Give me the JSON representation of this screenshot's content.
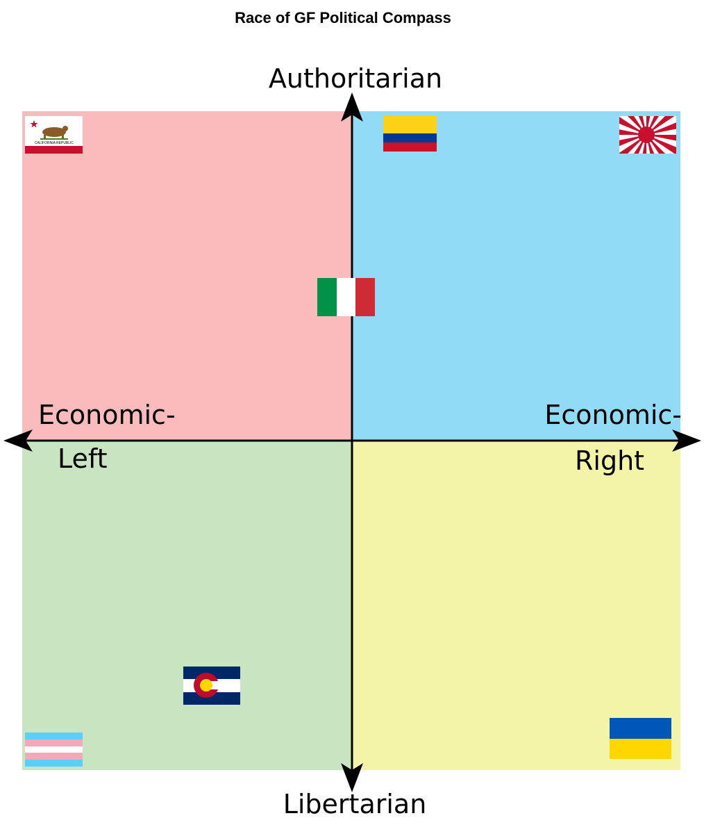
{
  "title": "Race of GF Political Compass",
  "axes": {
    "top": "Authoritarian",
    "bottom": "Libertarian",
    "left": [
      "Economic-",
      "Left"
    ],
    "right": [
      "Economic-",
      "Right"
    ]
  },
  "flags": {
    "california": "CALIFORNIA REPUBLIC"
  }
}
